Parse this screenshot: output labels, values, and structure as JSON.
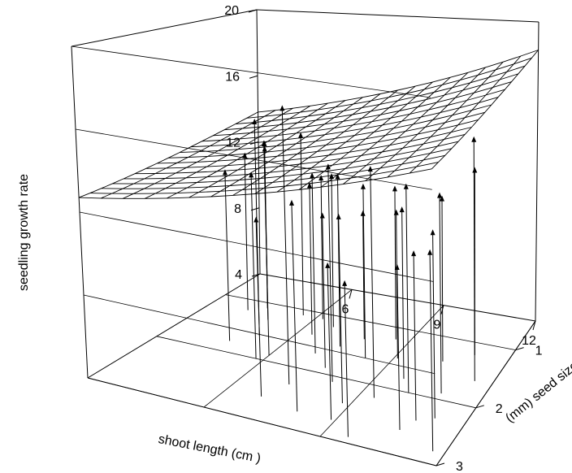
{
  "chart_data": {
    "type": "scatter",
    "title": "",
    "xlabel": "shoot length (cm )",
    "ylabel": "(mm) seed size",
    "zlabel": "seedling growth rate",
    "x_ticks": [
      "6",
      "9",
      "12"
    ],
    "y_ticks": [
      "1",
      "2",
      "3"
    ],
    "z_ticks": [
      "4",
      "8",
      "12",
      "16",
      "20"
    ],
    "xlim": [
      3,
      12
    ],
    "ylim": [
      0.5,
      3
    ],
    "zlim": [
      4,
      20
    ],
    "surface": {
      "model": "regression plane with curvature",
      "grid": [
        16,
        16
      ]
    },
    "points": [
      {
        "x": 4.1,
        "y": 1.2,
        "z": 12.6
      },
      {
        "x": 4.5,
        "y": 1.1,
        "z": 12.9
      },
      {
        "x": 4.9,
        "y": 1.3,
        "z": 13.6
      },
      {
        "x": 5.2,
        "y": 1.6,
        "z": 15.3
      },
      {
        "x": 5.6,
        "y": 1.1,
        "z": 13.9
      },
      {
        "x": 6.0,
        "y": 1.9,
        "z": 14.8
      },
      {
        "x": 6.4,
        "y": 1.4,
        "z": 11.9
      },
      {
        "x": 6.7,
        "y": 1.2,
        "z": 12.1
      },
      {
        "x": 7.0,
        "y": 1.7,
        "z": 13.1
      },
      {
        "x": 7.2,
        "y": 2.3,
        "z": 17.4
      },
      {
        "x": 7.6,
        "y": 1.9,
        "z": 11.6
      },
      {
        "x": 7.8,
        "y": 1.3,
        "z": 10.6
      },
      {
        "x": 8.1,
        "y": 2.1,
        "z": 14.5
      },
      {
        "x": 8.3,
        "y": 1.6,
        "z": 12.7
      },
      {
        "x": 8.6,
        "y": 1.2,
        "z": 11.9
      },
      {
        "x": 8.8,
        "y": 2.4,
        "z": 12.8
      },
      {
        "x": 9.1,
        "y": 1.5,
        "z": 11.4
      },
      {
        "x": 9.4,
        "y": 2.2,
        "z": 14.9
      },
      {
        "x": 9.7,
        "y": 1.8,
        "z": 12.3
      },
      {
        "x": 10.1,
        "y": 2.0,
        "z": 13.9
      },
      {
        "x": 10.3,
        "y": 1.4,
        "z": 12.2
      },
      {
        "x": 10.6,
        "y": 2.6,
        "z": 11.4
      },
      {
        "x": 10.9,
        "y": 1.9,
        "z": 13.5
      },
      {
        "x": 11.2,
        "y": 2.3,
        "z": 12.6
      },
      {
        "x": 11.5,
        "y": 1.6,
        "z": 15.8
      },
      {
        "x": 11.7,
        "y": 2.8,
        "z": 12.8
      },
      {
        "x": 9.6,
        "y": 2.9,
        "z": 10.9
      },
      {
        "x": 8.9,
        "y": 2.7,
        "z": 11.1
      },
      {
        "x": 10.8,
        "y": 2.4,
        "z": 11.7
      },
      {
        "x": 6.2,
        "y": 1.1,
        "z": 11.7
      },
      {
        "x": 5.8,
        "y": 2.0,
        "z": 13.3
      },
      {
        "x": 7.4,
        "y": 1.5,
        "z": 12.8
      },
      {
        "x": 6.9,
        "y": 2.6,
        "z": 12.4
      },
      {
        "x": 4.7,
        "y": 1.8,
        "z": 12.8
      },
      {
        "x": 8.0,
        "y": 2.7,
        "z": 13.7
      },
      {
        "x": 11.0,
        "y": 1.2,
        "z": 13.4
      }
    ]
  }
}
